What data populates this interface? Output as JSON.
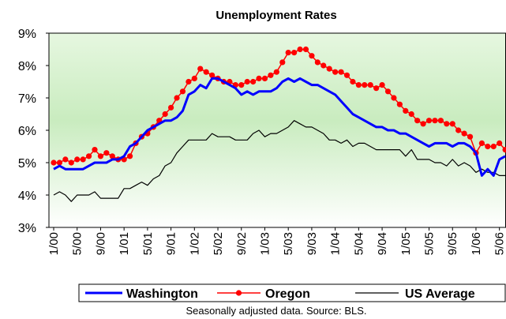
{
  "chart_data": {
    "type": "line",
    "title": "Unemployment Rates",
    "source": "Seasonally adjusted data.  Source: BLS.",
    "categories": [
      "1/00",
      null,
      null,
      null,
      "5/00",
      null,
      null,
      null,
      "9/00",
      null,
      null,
      null,
      "1/01",
      null,
      null,
      null,
      "5/01",
      null,
      null,
      null,
      "9/01",
      null,
      null,
      null,
      "1/02",
      null,
      null,
      null,
      "5/02",
      null,
      null,
      null,
      "9/02",
      null,
      null,
      null,
      "1/03",
      null,
      null,
      null,
      "5/03",
      null,
      null,
      null,
      "9/03",
      null,
      null,
      null,
      "1/04",
      null,
      null,
      null,
      "5/04",
      null,
      null,
      null,
      "9/04",
      null,
      null,
      null,
      "1/05",
      null,
      null,
      null,
      "5/05",
      null,
      null,
      null,
      "9/05",
      null,
      null,
      null,
      "1/06",
      null,
      null,
      null,
      "5/06",
      null
    ],
    "series": [
      {
        "name": "Washington",
        "color": "#0000ff",
        "values": [
          4.8,
          4.9,
          4.8,
          4.8,
          4.8,
          4.8,
          4.9,
          5.0,
          5.0,
          5.0,
          5.1,
          5.1,
          5.2,
          5.5,
          5.6,
          5.8,
          6.0,
          6.1,
          6.2,
          6.3,
          6.3,
          6.4,
          6.6,
          7.1,
          7.2,
          7.4,
          7.3,
          7.6,
          7.6,
          7.5,
          7.4,
          7.3,
          7.1,
          7.2,
          7.1,
          7.2,
          7.2,
          7.2,
          7.3,
          7.5,
          7.6,
          7.5,
          7.6,
          7.5,
          7.4,
          7.4,
          7.3,
          7.2,
          7.1,
          6.9,
          6.7,
          6.5,
          6.4,
          6.3,
          6.2,
          6.1,
          6.1,
          6.0,
          6.0,
          5.9,
          5.9,
          5.8,
          5.7,
          5.6,
          5.5,
          5.6,
          5.6,
          5.6,
          5.5,
          5.6,
          5.6,
          5.5,
          5.3,
          4.6,
          4.8,
          4.6,
          5.1,
          5.2
        ]
      },
      {
        "name": "Oregon",
        "color": "#ff0000",
        "values": [
          5.0,
          5.0,
          5.1,
          5.0,
          5.1,
          5.1,
          5.2,
          5.4,
          5.2,
          5.3,
          5.2,
          5.1,
          5.1,
          5.2,
          5.6,
          5.8,
          5.9,
          6.1,
          6.3,
          6.5,
          6.7,
          7.0,
          7.2,
          7.5,
          7.6,
          7.9,
          7.8,
          7.7,
          7.6,
          7.5,
          7.5,
          7.4,
          7.4,
          7.5,
          7.5,
          7.6,
          7.6,
          7.7,
          7.8,
          8.1,
          8.4,
          8.4,
          8.5,
          8.5,
          8.3,
          8.1,
          8.0,
          7.9,
          7.8,
          7.8,
          7.7,
          7.5,
          7.4,
          7.4,
          7.4,
          7.3,
          7.4,
          7.2,
          7.0,
          6.8,
          6.6,
          6.5,
          6.3,
          6.2,
          6.3,
          6.3,
          6.3,
          6.2,
          6.2,
          6.0,
          5.9,
          5.8,
          5.3,
          5.6,
          5.5,
          5.5,
          5.6,
          5.4
        ]
      },
      {
        "name": "US Average",
        "color": "#000000",
        "values": [
          4.0,
          4.1,
          4.0,
          3.8,
          4.0,
          4.0,
          4.0,
          4.1,
          3.9,
          3.9,
          3.9,
          3.9,
          4.2,
          4.2,
          4.3,
          4.4,
          4.3,
          4.5,
          4.6,
          4.9,
          5.0,
          5.3,
          5.5,
          5.7,
          5.7,
          5.7,
          5.7,
          5.9,
          5.8,
          5.8,
          5.8,
          5.7,
          5.7,
          5.7,
          5.9,
          6.0,
          5.8,
          5.9,
          5.9,
          6.0,
          6.1,
          6.3,
          6.2,
          6.1,
          6.1,
          6.0,
          5.9,
          5.7,
          5.7,
          5.6,
          5.7,
          5.5,
          5.6,
          5.6,
          5.5,
          5.4,
          5.4,
          5.4,
          5.4,
          5.4,
          5.2,
          5.4,
          5.1,
          5.1,
          5.1,
          5.0,
          5.0,
          4.9,
          5.1,
          4.9,
          5.0,
          4.9,
          4.7,
          4.8,
          4.7,
          4.7,
          4.6,
          4.6
        ]
      }
    ],
    "ylim": [
      3,
      9
    ],
    "yticks": [
      {
        "value": 3,
        "label": "3%"
      },
      {
        "value": 4,
        "label": "4%"
      },
      {
        "value": 5,
        "label": "5%"
      },
      {
        "value": 6,
        "label": "6%"
      },
      {
        "value": 7,
        "label": "7%"
      },
      {
        "value": 8,
        "label": "8%"
      },
      {
        "value": 9,
        "label": "9%"
      }
    ]
  }
}
